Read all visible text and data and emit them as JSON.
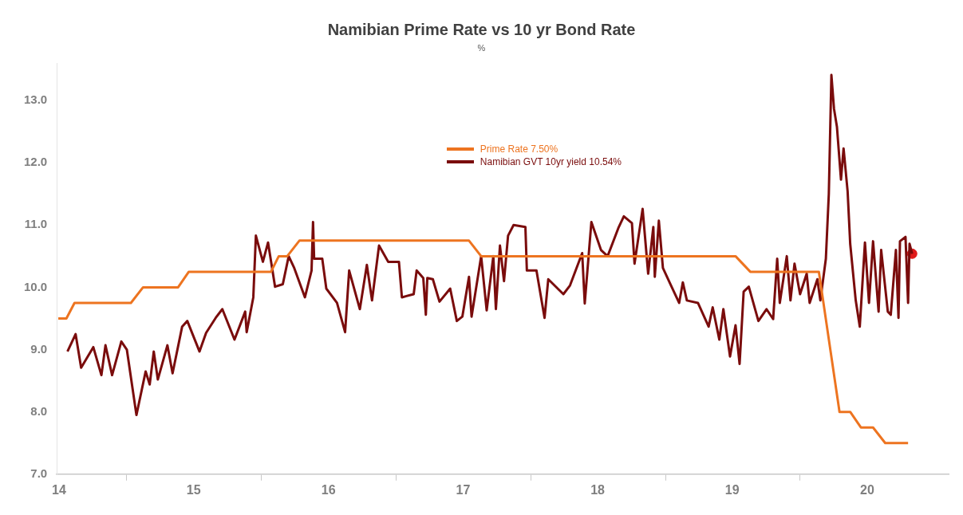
{
  "chart_data": {
    "type": "line",
    "title": "Namibian Prime Rate vs 10 yr Bond Rate",
    "subtitle": "%",
    "xlim": [
      "2014-06-25",
      "2021-02-07"
    ],
    "xticks": [
      {
        "value": "2014-07-01",
        "label": "14"
      },
      {
        "value": "2015-01-01",
        "label": null
      },
      {
        "value": "2015-07-01",
        "label": "15"
      },
      {
        "value": "2016-01-01",
        "label": null
      },
      {
        "value": "2016-07-01",
        "label": "16"
      },
      {
        "value": "2017-01-01",
        "label": null
      },
      {
        "value": "2017-07-01",
        "label": "17"
      },
      {
        "value": "2018-01-01",
        "label": null
      },
      {
        "value": "2018-07-01",
        "label": "18"
      },
      {
        "value": "2019-01-01",
        "label": null
      },
      {
        "value": "2019-07-01",
        "label": "19"
      },
      {
        "value": "2020-01-01",
        "label": null
      },
      {
        "value": "2020-07-01",
        "label": "20"
      }
    ],
    "ylim": [
      7,
      13.6
    ],
    "yticks": [
      {
        "value": 7,
        "label": "7.0"
      },
      {
        "value": 8,
        "label": "8.0"
      },
      {
        "value": 9,
        "label": "9.0"
      },
      {
        "value": 10,
        "label": "10.0"
      },
      {
        "value": 11,
        "label": "11.0"
      },
      {
        "value": 12,
        "label": "12.0"
      },
      {
        "value": 13,
        "label": "13.0"
      }
    ],
    "grid": false,
    "legend": "top right",
    "marker": "none",
    "line_style": "solid",
    "series": [
      {
        "name": "Prime Rate 7.50%",
        "color": "#ed7420",
        "x": [
          "2014-06-29",
          "2014-07-21",
          "2014-08-12",
          "2015-01-12",
          "2015-02-14",
          "2015-05-20",
          "2015-06-18",
          "2016-01-27",
          "2016-02-17",
          "2016-03-11",
          "2016-04-13",
          "2017-07-17",
          "2017-08-19",
          "2019-07-10",
          "2019-08-19",
          "2020-02-21",
          "2020-04-17",
          "2020-05-16",
          "2020-06-14",
          "2020-07-17",
          "2020-08-19",
          "2020-10-20"
        ],
        "values": [
          9.5,
          9.5,
          9.75,
          9.75,
          10.0,
          10.0,
          10.25,
          10.25,
          10.5,
          10.5,
          10.75,
          10.75,
          10.5,
          10.5,
          10.25,
          10.25,
          8.0,
          8.0,
          7.75,
          7.75,
          7.5,
          7.5
        ]
      },
      {
        "name": "Namibian GVT 10yr yield 10.54%",
        "color": "#7a0c0c",
        "x": [
          "2014-07-24",
          "2014-08-15",
          "2014-08-30",
          "2014-10-02",
          "2014-10-24",
          "2014-11-04",
          "2014-11-22",
          "2014-12-17",
          "2015-01-01",
          "2015-01-27",
          "2015-02-21",
          "2015-03-04",
          "2015-03-15",
          "2015-03-26",
          "2015-04-21",
          "2015-05-05",
          "2015-05-31",
          "2015-06-14",
          "2015-07-17",
          "2015-08-04",
          "2015-08-30",
          "2015-09-17",
          "2015-10-20",
          "2015-11-18",
          "2015-11-22",
          "2015-12-10",
          "2015-12-17",
          "2016-01-05",
          "2016-01-19",
          "2016-02-07",
          "2016-02-28",
          "2016-03-15",
          "2016-03-30",
          "2016-04-28",
          "2016-05-16",
          "2016-05-20",
          "2016-05-23",
          "2016-06-14",
          "2016-06-25",
          "2016-07-24",
          "2016-08-15",
          "2016-08-26",
          "2016-09-24",
          "2016-10-13",
          "2016-10-27",
          "2016-11-15",
          "2016-12-10",
          "2017-01-08",
          "2017-01-16",
          "2017-02-17",
          "2017-02-25",
          "2017-03-15",
          "2017-03-22",
          "2017-03-26",
          "2017-04-10",
          "2017-04-28",
          "2017-05-27",
          "2017-06-14",
          "2017-06-29",
          "2017-07-17",
          "2017-07-24",
          "2017-08-19",
          "2017-09-03",
          "2017-09-21",
          "2017-09-28",
          "2017-10-09",
          "2017-10-20",
          "2017-10-31",
          "2017-11-15",
          "2017-12-17",
          "2017-12-21",
          "2018-01-16",
          "2018-02-07",
          "2018-02-17",
          "2018-03-30",
          "2018-04-17",
          "2018-05-20",
          "2018-05-27",
          "2018-06-14",
          "2018-07-10",
          "2018-07-28",
          "2018-08-26",
          "2018-09-10",
          "2018-10-02",
          "2018-10-09",
          "2018-10-31",
          "2018-11-15",
          "2018-11-29",
          "2018-12-03",
          "2018-12-14",
          "2018-12-25",
          "2019-01-16",
          "2019-02-07",
          "2019-02-17",
          "2019-02-28",
          "2019-03-30",
          "2019-04-28",
          "2019-05-09",
          "2019-05-27",
          "2019-06-07",
          "2019-06-25",
          "2019-07-10",
          "2019-07-21",
          "2019-08-01",
          "2019-08-15",
          "2019-09-10",
          "2019-10-02",
          "2019-10-20",
          "2019-10-31",
          "2019-11-07",
          "2019-11-26",
          "2019-12-06",
          "2019-12-17",
          "2020-01-01",
          "2020-01-19",
          "2020-01-27",
          "2020-02-17",
          "2020-02-25",
          "2020-03-11",
          "2020-03-19",
          "2020-03-26",
          "2020-04-02",
          "2020-04-10",
          "2020-04-21",
          "2020-04-28",
          "2020-05-09",
          "2020-05-16",
          "2020-05-31",
          "2020-06-11",
          "2020-06-25",
          "2020-07-06",
          "2020-07-17",
          "2020-08-01",
          "2020-08-08",
          "2020-08-26",
          "2020-09-03",
          "2020-09-17",
          "2020-09-24",
          "2020-09-28",
          "2020-10-13",
          "2020-10-20",
          "2020-10-24",
          "2020-10-31"
        ],
        "values": [
          8.97,
          9.25,
          8.71,
          9.04,
          8.59,
          9.07,
          8.59,
          9.13,
          9.0,
          7.95,
          8.65,
          8.44,
          8.97,
          8.52,
          9.07,
          8.62,
          9.37,
          9.46,
          8.97,
          9.27,
          9.51,
          9.65,
          9.16,
          9.61,
          9.28,
          9.84,
          10.83,
          10.41,
          10.72,
          10.01,
          10.05,
          10.5,
          10.31,
          9.84,
          10.27,
          11.05,
          10.46,
          10.46,
          9.98,
          9.75,
          9.28,
          10.27,
          9.65,
          10.36,
          9.79,
          10.67,
          10.41,
          10.41,
          9.84,
          9.89,
          10.27,
          10.15,
          9.56,
          10.15,
          10.13,
          9.77,
          9.98,
          9.46,
          9.53,
          10.17,
          9.53,
          10.5,
          9.63,
          10.5,
          9.65,
          10.67,
          10.1,
          10.83,
          11.0,
          10.97,
          10.27,
          10.27,
          9.51,
          10.13,
          9.89,
          10.03,
          10.55,
          9.74,
          11.05,
          10.6,
          10.5,
          10.95,
          11.14,
          11.03,
          10.38,
          11.26,
          10.22,
          10.97,
          10.17,
          11.07,
          10.31,
          10.03,
          9.75,
          10.08,
          9.79,
          9.75,
          9.37,
          9.68,
          9.16,
          9.65,
          8.89,
          9.39,
          8.77,
          9.93,
          10.01,
          9.46,
          9.65,
          9.49,
          10.46,
          9.75,
          10.5,
          9.79,
          10.38,
          9.89,
          10.22,
          9.75,
          10.13,
          9.79,
          10.46,
          11.5,
          13.41,
          12.87,
          12.58,
          11.73,
          12.23,
          11.54,
          10.7,
          9.79,
          9.37,
          10.72,
          9.75,
          10.74,
          9.61,
          10.6,
          9.61,
          9.56,
          10.6,
          9.51,
          10.74,
          10.81,
          9.75,
          10.7,
          10.54
        ]
      },
      {
        "type": "scatter",
        "marker": "circle",
        "color": "#e01b1b",
        "x": [
          "2020-10-31"
        ],
        "values": [
          10.54
        ]
      }
    ]
  }
}
